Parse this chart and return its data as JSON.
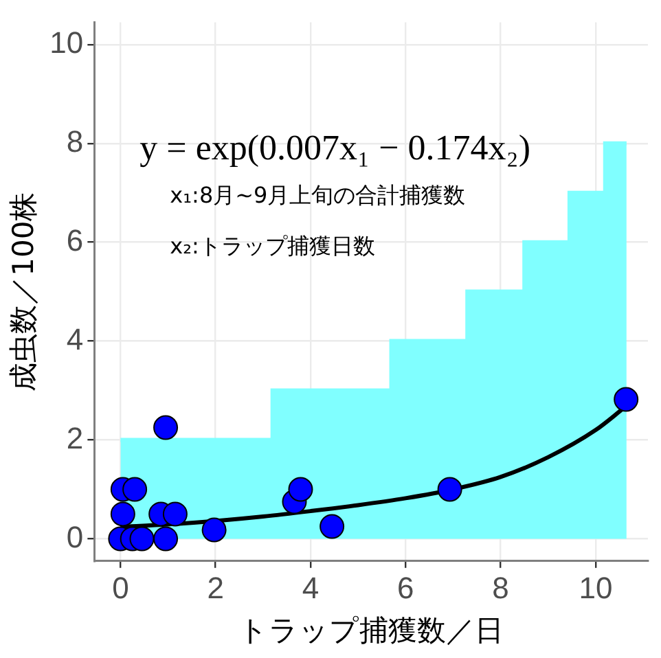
{
  "chart_data": {
    "type": "scatter",
    "xlabel": "トラップ捕獲数／日",
    "ylabel": "成虫数／100株",
    "xlim": [
      -0.55,
      11.1
    ],
    "ylim": [
      -0.45,
      10.45
    ],
    "xticks": [
      0,
      2,
      4,
      6,
      8,
      10
    ],
    "yticks": [
      0,
      2,
      4,
      6,
      8,
      10
    ],
    "grid": true,
    "legend": false,
    "annotations": [
      "y = exp(0.007x₁ − 0.174x₂)",
      "x₁:8月~9月上旬の合計捕獲数",
      "x₂:トラップ捕獲日数"
    ],
    "series": [
      {
        "type": "area",
        "color": "#80ffff",
        "x": [
          0,
          3.2,
          3.2,
          5.7,
          5.7,
          7.3,
          7.3,
          8.5,
          8.5,
          9.45,
          9.45,
          10.2,
          10.2,
          10.65
        ],
        "values": [
          2,
          2,
          3,
          3,
          4,
          4,
          5,
          5,
          6,
          6,
          7,
          7,
          8,
          8
        ]
      },
      {
        "type": "line",
        "color": "#000000",
        "marker": "none",
        "x": [
          0,
          1,
          2,
          3,
          4,
          5,
          6,
          7,
          8,
          9,
          10,
          10.6
        ],
        "values": [
          0.24,
          0.29,
          0.36,
          0.45,
          0.56,
          0.68,
          0.82,
          1.0,
          1.25,
          1.65,
          2.2,
          2.65
        ]
      },
      {
        "color": "#0000ff",
        "marker": "circle",
        "x": [
          0.05,
          0.3,
          0.05,
          0,
          0.25,
          0.45,
          0.95,
          0.85,
          1.15,
          0.95,
          1.97,
          3.66,
          3.79,
          4.45,
          6.93,
          10.64
        ],
        "values": [
          1,
          1,
          0.5,
          0,
          0,
          0,
          2.25,
          0.5,
          0.5,
          0,
          0.18,
          0.75,
          1,
          0.25,
          1,
          2.82
        ]
      }
    ]
  }
}
